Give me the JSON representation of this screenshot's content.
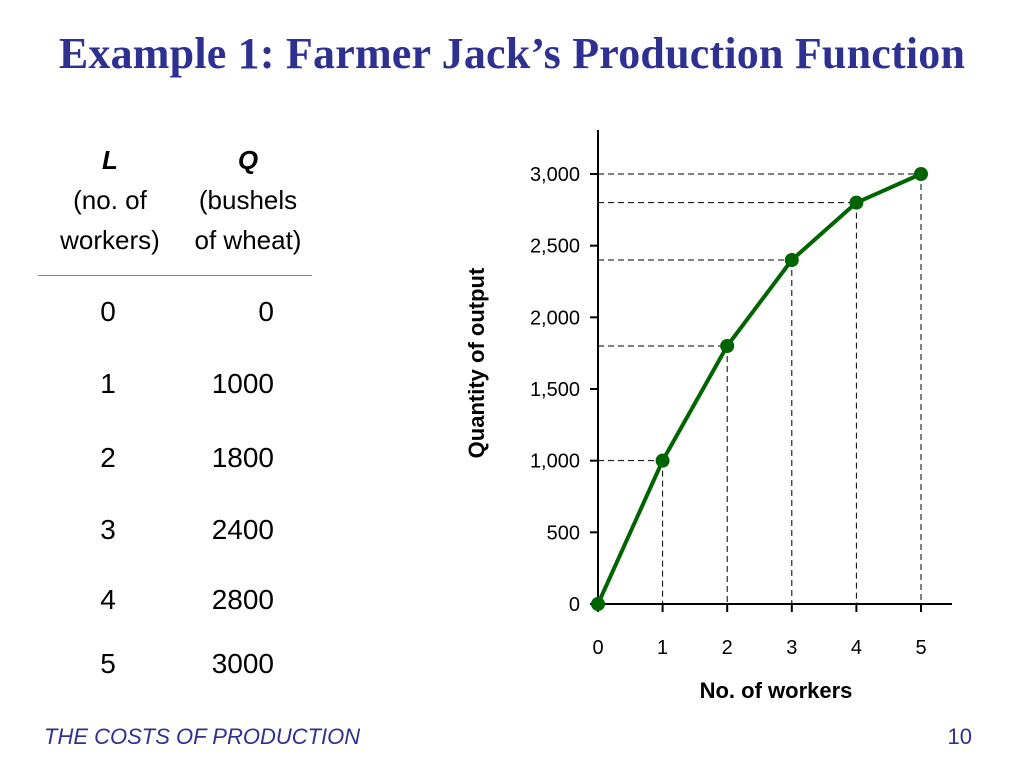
{
  "slide": {
    "title": "Example 1:  Farmer Jack’s Production Function",
    "footer": "THE COSTS OF PRODUCTION",
    "page_number": "10"
  },
  "table": {
    "col_l_symbol": "L",
    "col_l_sub1": "(no. of",
    "col_l_sub2": "workers)",
    "col_q_symbol": "Q",
    "col_q_sub1": "(bushels",
    "col_q_sub2": "of wheat)",
    "rows": [
      {
        "l": "0",
        "q": "0"
      },
      {
        "l": "1",
        "q": "1000"
      },
      {
        "l": "2",
        "q": "1800"
      },
      {
        "l": "3",
        "q": "2400"
      },
      {
        "l": "4",
        "q": "2800"
      },
      {
        "l": "5",
        "q": "3000"
      }
    ]
  },
  "chart_data": {
    "type": "line",
    "title": "",
    "xlabel": "No. of workers",
    "ylabel": "Quantity of output",
    "x": [
      0,
      1,
      2,
      3,
      4,
      5
    ],
    "series": [
      {
        "values": [
          0,
          1000,
          1800,
          2400,
          2800,
          3000
        ],
        "color": "#006400"
      }
    ],
    "xlim": [
      0,
      5.5
    ],
    "ylim": [
      0,
      3000
    ],
    "x_ticks": [
      "0",
      "1",
      "2",
      "3",
      "4",
      "5"
    ],
    "y_ticks": [
      "0",
      "500",
      "1,000",
      "1,500",
      "2,000",
      "2,500",
      "3,000"
    ],
    "grid": false,
    "dashed_guides": true,
    "markers": true
  }
}
